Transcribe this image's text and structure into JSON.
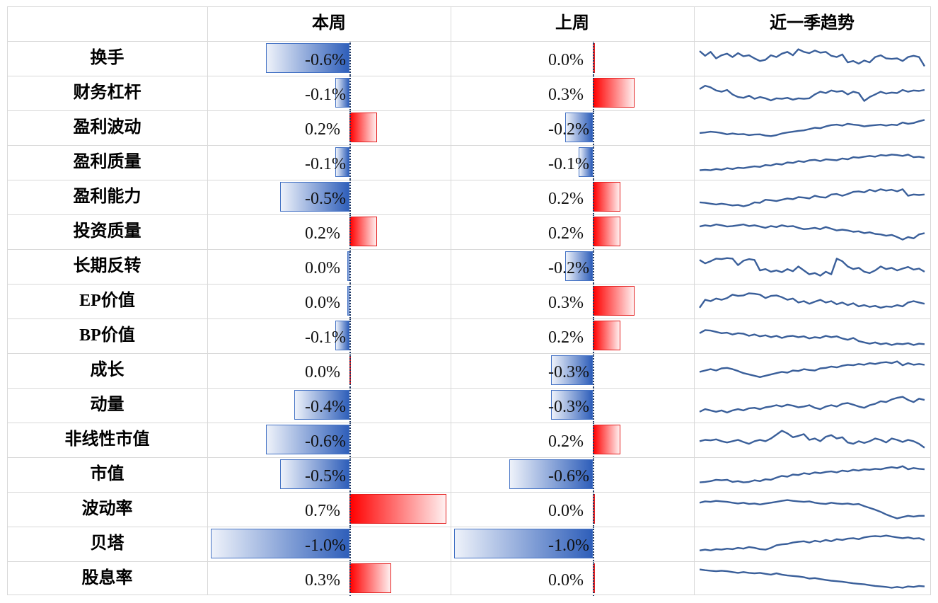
{
  "headers": {
    "factor": "",
    "this_week": "本周",
    "last_week": "上周",
    "trend": "近一季趋势"
  },
  "scale": {
    "min": -1.0,
    "max": 0.7,
    "unit": "%"
  },
  "colors": {
    "negative": "#4472c4",
    "positive": "#ff0000",
    "sparkline": "#3a5f9a"
  },
  "rows": [
    {
      "factor": "换手",
      "this_week": -0.6,
      "this_week_label": "-0.6%",
      "last_week": 0.0,
      "last_week_label": "0.0%",
      "trend": [
        0.78,
        0.6,
        0.75,
        0.5,
        0.62,
        0.68,
        0.55,
        0.7,
        0.58,
        0.62,
        0.5,
        0.4,
        0.45,
        0.62,
        0.55,
        0.68,
        0.75,
        0.62,
        0.85,
        0.75,
        0.7,
        0.8,
        0.72,
        0.75,
        0.6,
        0.55,
        0.65,
        0.35,
        0.4,
        0.3,
        0.42,
        0.35,
        0.55,
        0.62,
        0.5,
        0.48,
        0.5,
        0.4,
        0.55,
        0.6,
        0.55,
        0.2
      ]
    },
    {
      "factor": "财务杠杆",
      "this_week": -0.1,
      "this_week_label": "-0.1%",
      "last_week": 0.3,
      "last_week_label": "0.3%",
      "trend": [
        0.65,
        0.78,
        0.72,
        0.6,
        0.55,
        0.62,
        0.45,
        0.35,
        0.32,
        0.4,
        0.28,
        0.35,
        0.3,
        0.22,
        0.3,
        0.28,
        0.32,
        0.25,
        0.3,
        0.28,
        0.3,
        0.45,
        0.55,
        0.5,
        0.6,
        0.55,
        0.58,
        0.45,
        0.55,
        0.5,
        0.2,
        0.35,
        0.45,
        0.55,
        0.48,
        0.52,
        0.5,
        0.62,
        0.55,
        0.6,
        0.58,
        0.62
      ]
    },
    {
      "factor": "盈利波动",
      "this_week": 0.2,
      "this_week_label": "0.2%",
      "last_week": -0.2,
      "last_week_label": "-0.2%",
      "trend": [
        0.3,
        0.32,
        0.35,
        0.33,
        0.3,
        0.25,
        0.28,
        0.25,
        0.26,
        0.22,
        0.24,
        0.25,
        0.2,
        0.18,
        0.22,
        0.28,
        0.32,
        0.35,
        0.38,
        0.4,
        0.45,
        0.5,
        0.48,
        0.55,
        0.6,
        0.62,
        0.58,
        0.65,
        0.62,
        0.6,
        0.55,
        0.58,
        0.6,
        0.62,
        0.58,
        0.62,
        0.6,
        0.7,
        0.65,
        0.68,
        0.75,
        0.8
      ]
    },
    {
      "factor": "盈利质量",
      "this_week": -0.1,
      "this_week_label": "-0.1%",
      "last_week": -0.1,
      "last_week_label": "-0.1%",
      "trend": [
        0.2,
        0.22,
        0.2,
        0.25,
        0.22,
        0.28,
        0.25,
        0.3,
        0.28,
        0.32,
        0.35,
        0.33,
        0.4,
        0.38,
        0.45,
        0.42,
        0.5,
        0.48,
        0.55,
        0.52,
        0.58,
        0.6,
        0.55,
        0.62,
        0.6,
        0.58,
        0.65,
        0.62,
        0.7,
        0.68,
        0.72,
        0.75,
        0.72,
        0.78,
        0.76,
        0.8,
        0.78,
        0.75,
        0.8,
        0.7,
        0.72,
        0.68
      ]
    },
    {
      "factor": "盈利能力",
      "this_week": -0.5,
      "this_week_label": "-0.5%",
      "last_week": 0.2,
      "last_week_label": "0.2%",
      "trend": [
        0.3,
        0.28,
        0.25,
        0.22,
        0.25,
        0.22,
        0.18,
        0.2,
        0.15,
        0.2,
        0.3,
        0.28,
        0.4,
        0.38,
        0.35,
        0.4,
        0.45,
        0.42,
        0.5,
        0.48,
        0.45,
        0.55,
        0.5,
        0.48,
        0.6,
        0.62,
        0.55,
        0.62,
        0.7,
        0.72,
        0.68,
        0.78,
        0.72,
        0.8,
        0.75,
        0.78,
        0.72,
        0.8,
        0.55,
        0.6,
        0.58,
        0.6
      ]
    },
    {
      "factor": "投资质量",
      "this_week": 0.2,
      "this_week_label": "0.2%",
      "last_week": 0.2,
      "last_week_label": "0.2%",
      "trend": [
        0.7,
        0.75,
        0.72,
        0.78,
        0.75,
        0.7,
        0.72,
        0.75,
        0.78,
        0.72,
        0.75,
        0.7,
        0.65,
        0.72,
        0.68,
        0.75,
        0.7,
        0.72,
        0.65,
        0.6,
        0.62,
        0.65,
        0.6,
        0.68,
        0.62,
        0.55,
        0.58,
        0.55,
        0.5,
        0.52,
        0.45,
        0.48,
        0.42,
        0.4,
        0.35,
        0.38,
        0.3,
        0.2,
        0.3,
        0.25,
        0.4,
        0.45
      ]
    },
    {
      "factor": "长期反转",
      "this_week": 0.0,
      "this_week_label": "0.0%",
      "last_week": -0.2,
      "last_week_label": "-0.2%",
      "trend": [
        0.75,
        0.62,
        0.7,
        0.8,
        0.78,
        0.82,
        0.8,
        0.55,
        0.72,
        0.78,
        0.75,
        0.35,
        0.4,
        0.3,
        0.35,
        0.28,
        0.4,
        0.32,
        0.5,
        0.35,
        0.2,
        0.25,
        0.15,
        0.3,
        0.2,
        0.8,
        0.7,
        0.5,
        0.4,
        0.45,
        0.3,
        0.25,
        0.35,
        0.5,
        0.4,
        0.45,
        0.35,
        0.42,
        0.48,
        0.38,
        0.42,
        0.3
      ]
    },
    {
      "factor": "EP价值",
      "this_week": 0.0,
      "this_week_label": "0.0%",
      "last_week": 0.3,
      "last_week_label": "0.3%",
      "trend": [
        0.25,
        0.55,
        0.5,
        0.6,
        0.55,
        0.62,
        0.75,
        0.7,
        0.72,
        0.8,
        0.78,
        0.75,
        0.62,
        0.7,
        0.72,
        0.65,
        0.55,
        0.6,
        0.45,
        0.5,
        0.4,
        0.48,
        0.55,
        0.45,
        0.5,
        0.38,
        0.45,
        0.35,
        0.42,
        0.3,
        0.35,
        0.28,
        0.32,
        0.25,
        0.3,
        0.28,
        0.35,
        0.3,
        0.45,
        0.5,
        0.45,
        0.4
      ]
    },
    {
      "factor": "BP价值",
      "this_week": -0.1,
      "this_week_label": "-0.1%",
      "last_week": 0.2,
      "last_week_label": "0.2%",
      "trend": [
        0.6,
        0.72,
        0.7,
        0.65,
        0.6,
        0.62,
        0.55,
        0.6,
        0.58,
        0.5,
        0.55,
        0.48,
        0.52,
        0.45,
        0.5,
        0.42,
        0.48,
        0.5,
        0.45,
        0.48,
        0.4,
        0.45,
        0.42,
        0.5,
        0.45,
        0.48,
        0.4,
        0.35,
        0.42,
        0.3,
        0.25,
        0.2,
        0.25,
        0.18,
        0.22,
        0.15,
        0.2,
        0.18,
        0.22,
        0.15,
        0.2,
        0.18
      ]
    },
    {
      "factor": "成长",
      "this_week": 0.0,
      "this_week_label": "0.0%",
      "last_week": -0.3,
      "last_week_label": "-0.3%",
      "trend": [
        0.45,
        0.5,
        0.55,
        0.5,
        0.58,
        0.6,
        0.55,
        0.48,
        0.4,
        0.35,
        0.3,
        0.25,
        0.3,
        0.35,
        0.4,
        0.45,
        0.42,
        0.5,
        0.48,
        0.55,
        0.52,
        0.5,
        0.58,
        0.6,
        0.65,
        0.62,
        0.68,
        0.72,
        0.7,
        0.75,
        0.72,
        0.78,
        0.75,
        0.8,
        0.82,
        0.78,
        0.85,
        0.7,
        0.78,
        0.72,
        0.75,
        0.72
      ]
    },
    {
      "factor": "动量",
      "this_week": -0.4,
      "this_week_label": "-0.4%",
      "last_week": -0.3,
      "last_week_label": "-0.3%",
      "trend": [
        0.25,
        0.35,
        0.3,
        0.25,
        0.3,
        0.22,
        0.3,
        0.35,
        0.3,
        0.38,
        0.4,
        0.35,
        0.42,
        0.45,
        0.5,
        0.45,
        0.52,
        0.48,
        0.42,
        0.45,
        0.5,
        0.4,
        0.35,
        0.45,
        0.5,
        0.45,
        0.55,
        0.58,
        0.52,
        0.45,
        0.4,
        0.5,
        0.55,
        0.65,
        0.62,
        0.72,
        0.78,
        0.82,
        0.7,
        0.62,
        0.75,
        0.7
      ]
    },
    {
      "factor": "非线性市值",
      "this_week": -0.6,
      "this_week_label": "-0.6%",
      "last_week": 0.2,
      "last_week_label": "0.2%",
      "trend": [
        0.45,
        0.5,
        0.48,
        0.52,
        0.45,
        0.4,
        0.45,
        0.5,
        0.42,
        0.35,
        0.45,
        0.5,
        0.45,
        0.55,
        0.7,
        0.85,
        0.75,
        0.6,
        0.65,
        0.72,
        0.5,
        0.55,
        0.45,
        0.62,
        0.68,
        0.55,
        0.6,
        0.4,
        0.35,
        0.45,
        0.38,
        0.45,
        0.55,
        0.5,
        0.4,
        0.55,
        0.5,
        0.42,
        0.5,
        0.45,
        0.35,
        0.2
      ]
    },
    {
      "factor": "市值",
      "this_week": -0.5,
      "this_week_label": "-0.5%",
      "last_week": -0.6,
      "last_week_label": "-0.6%",
      "trend": [
        0.2,
        0.22,
        0.25,
        0.3,
        0.28,
        0.3,
        0.22,
        0.25,
        0.2,
        0.22,
        0.28,
        0.25,
        0.32,
        0.3,
        0.38,
        0.45,
        0.42,
        0.5,
        0.48,
        0.55,
        0.52,
        0.58,
        0.55,
        0.6,
        0.62,
        0.58,
        0.65,
        0.62,
        0.68,
        0.65,
        0.7,
        0.68,
        0.72,
        0.7,
        0.75,
        0.78,
        0.75,
        0.82,
        0.7,
        0.75,
        0.72,
        0.7
      ]
    },
    {
      "factor": "波动率",
      "this_week": 0.7,
      "this_week_label": "0.7%",
      "last_week": 0.0,
      "last_week_label": "0.0%",
      "trend": [
        0.75,
        0.8,
        0.78,
        0.82,
        0.8,
        0.78,
        0.75,
        0.72,
        0.75,
        0.7,
        0.72,
        0.68,
        0.72,
        0.75,
        0.78,
        0.82,
        0.85,
        0.82,
        0.8,
        0.78,
        0.8,
        0.75,
        0.72,
        0.7,
        0.75,
        0.72,
        0.7,
        0.72,
        0.68,
        0.7,
        0.62,
        0.55,
        0.48,
        0.4,
        0.3,
        0.22,
        0.15,
        0.2,
        0.25,
        0.22,
        0.25,
        0.25
      ]
    },
    {
      "factor": "贝塔",
      "this_week": -1.0,
      "this_week_label": "-1.0%",
      "last_week": -1.0,
      "last_week_label": "-1.0%",
      "trend": [
        0.25,
        0.28,
        0.25,
        0.3,
        0.28,
        0.32,
        0.3,
        0.35,
        0.32,
        0.38,
        0.35,
        0.3,
        0.28,
        0.35,
        0.45,
        0.48,
        0.5,
        0.55,
        0.58,
        0.6,
        0.55,
        0.62,
        0.58,
        0.65,
        0.6,
        0.68,
        0.65,
        0.7,
        0.72,
        0.68,
        0.75,
        0.78,
        0.8,
        0.78,
        0.82,
        0.78,
        0.75,
        0.72,
        0.75,
        0.7,
        0.72,
        0.65
      ]
    },
    {
      "factor": "股息率",
      "this_week": 0.3,
      "this_week_label": "0.3%",
      "last_week": 0.0,
      "last_week_label": "0.0%",
      "trend": [
        0.85,
        0.82,
        0.8,
        0.78,
        0.8,
        0.78,
        0.75,
        0.72,
        0.75,
        0.72,
        0.7,
        0.72,
        0.68,
        0.65,
        0.7,
        0.65,
        0.62,
        0.6,
        0.58,
        0.55,
        0.5,
        0.52,
        0.48,
        0.45,
        0.42,
        0.4,
        0.38,
        0.35,
        0.32,
        0.3,
        0.28,
        0.25,
        0.22,
        0.2,
        0.18,
        0.15,
        0.18,
        0.15,
        0.2,
        0.18,
        0.22,
        0.2
      ]
    }
  ],
  "chart_data": {
    "type": "bar",
    "title": "",
    "categories": [
      "换手",
      "财务杠杆",
      "盈利波动",
      "盈利质量",
      "盈利能力",
      "投资质量",
      "长期反转",
      "EP价值",
      "BP价值",
      "成长",
      "动量",
      "非线性市值",
      "市值",
      "波动率",
      "贝塔",
      "股息率"
    ],
    "series": [
      {
        "name": "本周",
        "values": [
          -0.6,
          -0.1,
          0.2,
          -0.1,
          -0.5,
          0.2,
          0.0,
          0.0,
          -0.1,
          0.0,
          -0.4,
          -0.6,
          -0.5,
          0.7,
          -1.0,
          0.3
        ]
      },
      {
        "name": "上周",
        "values": [
          0.0,
          0.3,
          -0.2,
          -0.1,
          0.2,
          0.2,
          -0.2,
          0.3,
          0.2,
          -0.3,
          -0.3,
          0.2,
          -0.6,
          0.0,
          -1.0,
          0.0
        ]
      }
    ],
    "unit": "%",
    "grid": true,
    "legend": "none"
  }
}
